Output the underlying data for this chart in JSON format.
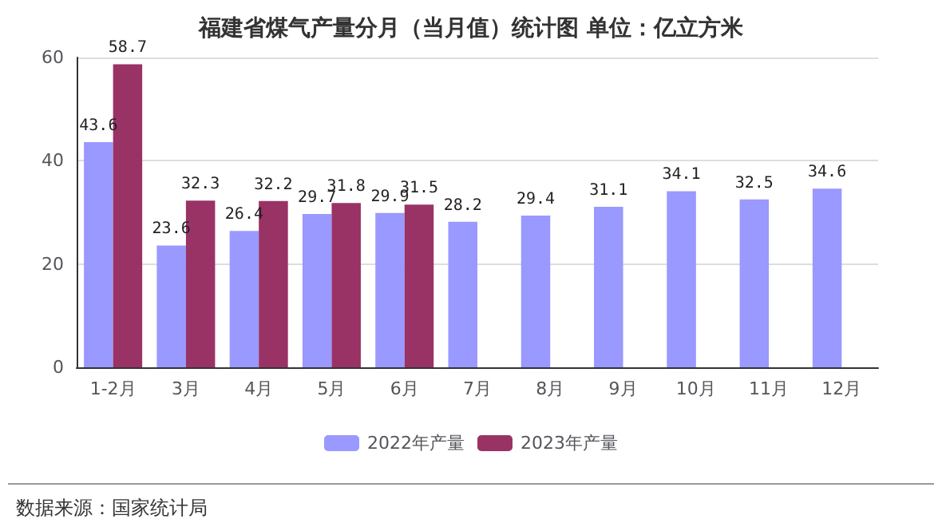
{
  "chart_data": {
    "type": "bar",
    "title": "福建省煤气产量分月（当月值）统计图 单位：亿立方米",
    "categories": [
      "1-2月",
      "3月",
      "4月",
      "5月",
      "6月",
      "7月",
      "8月",
      "9月",
      "10月",
      "11月",
      "12月"
    ],
    "series": [
      {
        "name": "2022年产量",
        "color": "#9999ff",
        "values": [
          43.6,
          23.6,
          26.4,
          29.7,
          29.9,
          28.2,
          29.4,
          31.1,
          34.1,
          32.5,
          34.6
        ]
      },
      {
        "name": "2023年产量",
        "color": "#993366",
        "values": [
          58.7,
          32.3,
          32.2,
          31.8,
          31.5,
          null,
          null,
          null,
          null,
          null,
          null
        ]
      }
    ],
    "ylim": [
      0,
      60
    ],
    "yticks": [
      0,
      20,
      40,
      60
    ],
    "grid": "y",
    "legend": "bottom",
    "data_labels": true,
    "annotations": [
      "数据来源：国家统计局"
    ]
  }
}
